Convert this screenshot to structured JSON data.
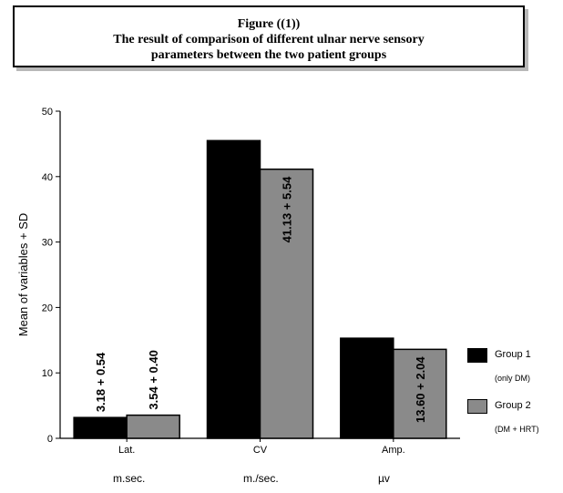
{
  "title": {
    "lines": [
      "Figure ((1))",
      "The result of comparison of different ulnar nerve sensory",
      "parameters between the two patient groups"
    ]
  },
  "chart_data": {
    "type": "bar",
    "categories": [
      "Lat.",
      "CV",
      "Amp."
    ],
    "units": [
      "m.sec.",
      "m./sec.",
      "µv"
    ],
    "series": [
      {
        "name": "Group 1",
        "subtitle": "(only DM)",
        "color": "#000000",
        "values": [
          3.18,
          45.5,
          15.3
        ],
        "labels": [
          "3.18 + 0.54",
          "",
          ""
        ]
      },
      {
        "name": "Group 2",
        "subtitle": "(DM + HRT)",
        "color": "#8a8a8a",
        "values": [
          3.54,
          41.13,
          13.6
        ],
        "labels": [
          "3.54 + 0.40",
          "41.13 + 5.54",
          "13.60 + 2.04"
        ]
      }
    ],
    "ylabel": "Mean of variables + SD",
    "ylim": [
      0,
      50
    ],
    "yticks": [
      0,
      10,
      20,
      30,
      40,
      50
    ],
    "legend_position": "right"
  }
}
